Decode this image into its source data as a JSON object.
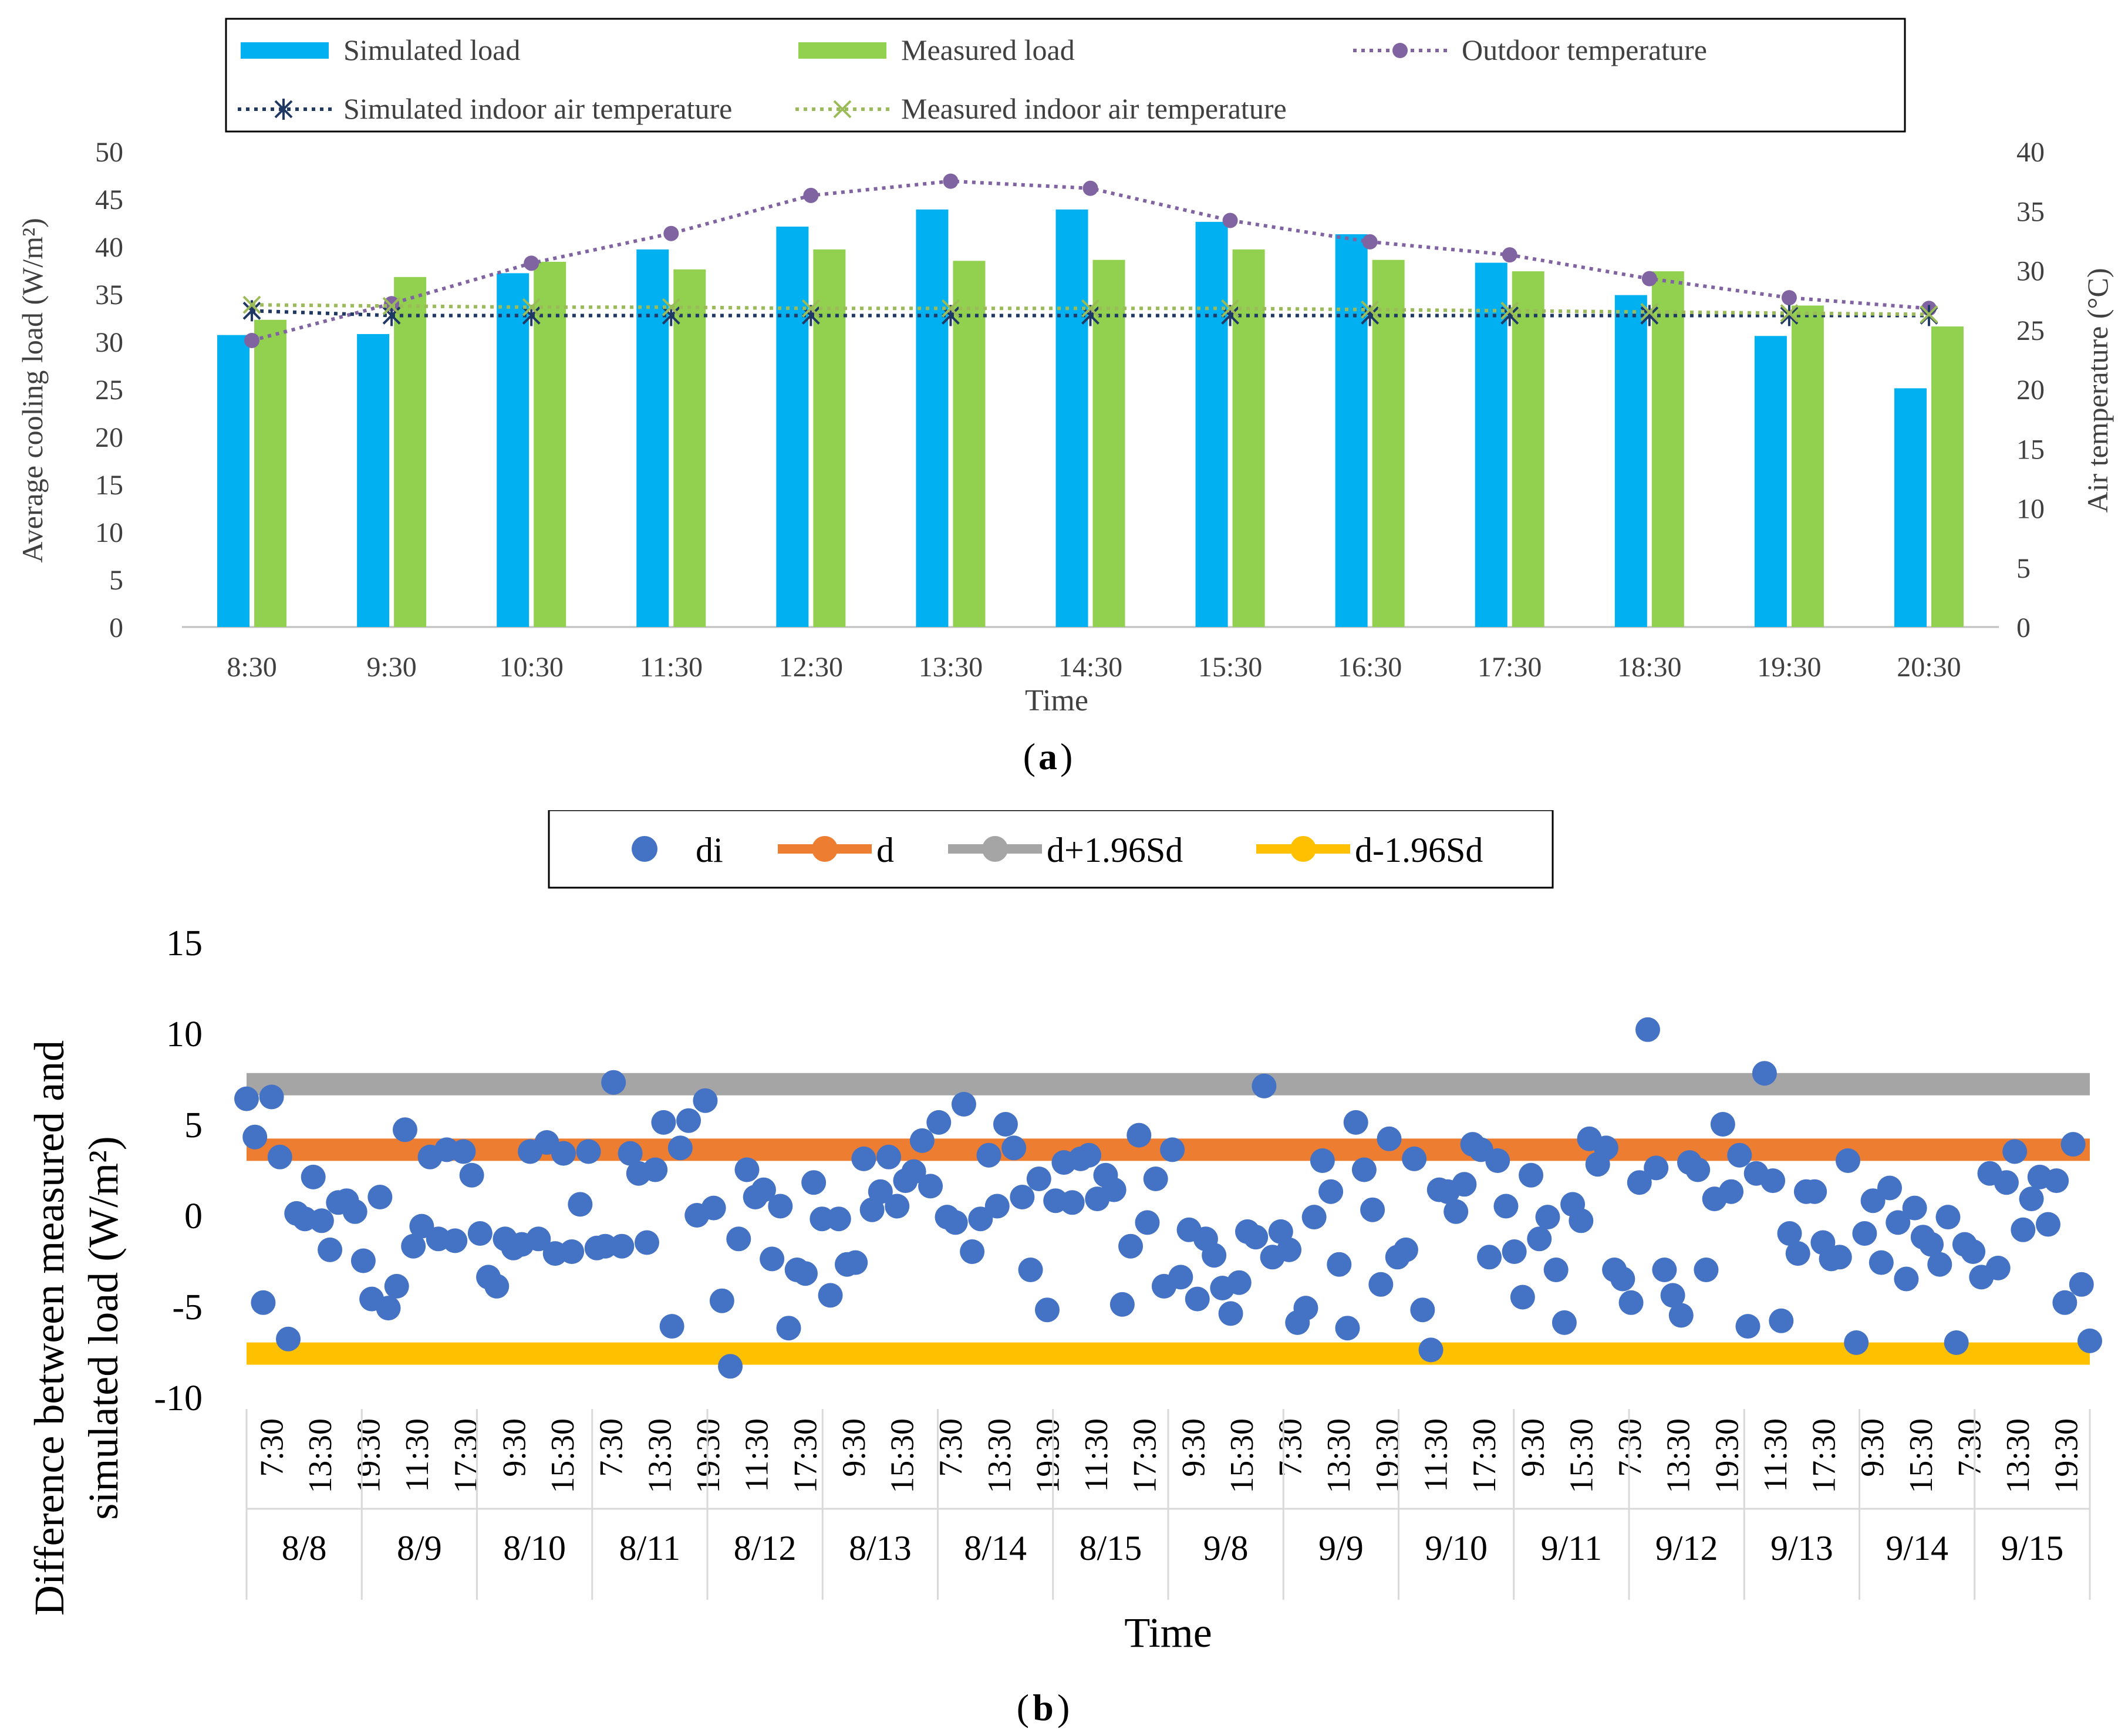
{
  "chart_data": [
    {
      "type": "bar",
      "panel_label": "a",
      "xlabel": "Time",
      "ylabel": "Average cooling load (W/m²)",
      "ylabel_right": "Air temperature (°C)",
      "ylim": [
        0,
        50
      ],
      "ylim_right": [
        0,
        40
      ],
      "yticks": [
        "0",
        "5",
        "10",
        "15",
        "20",
        "25",
        "30",
        "35",
        "40",
        "45",
        "50"
      ],
      "yticks_right": [
        "0",
        "5",
        "10",
        "15",
        "20",
        "25",
        "30",
        "35",
        "40"
      ],
      "categories": [
        "8:30",
        "9:30",
        "10:30",
        "11:30",
        "12:30",
        "13:30",
        "14:30",
        "15:30",
        "16:30",
        "17:30",
        "18:30",
        "19:30",
        "20:30"
      ],
      "legend": [
        "Simulated load",
        "Measured load",
        "Outdoor temperature",
        "Simulated indoor air temperature",
        "Measured indoor air temperature"
      ],
      "series": [
        {
          "name": "Simulated load",
          "kind": "bar",
          "axis": "left",
          "color": "#00B0F0",
          "values": [
            30.7,
            30.8,
            37.2,
            39.7,
            42.1,
            43.9,
            43.9,
            42.6,
            41.3,
            38.3,
            34.9,
            30.6,
            25.1
          ]
        },
        {
          "name": "Measured load",
          "kind": "bar",
          "axis": "left",
          "color": "#92D050",
          "values": [
            32.3,
            36.8,
            38.4,
            37.6,
            39.7,
            38.5,
            38.6,
            39.7,
            38.6,
            37.4,
            37.4,
            33.8,
            31.6
          ]
        },
        {
          "name": "Outdoor temperature",
          "kind": "line",
          "axis": "right",
          "color": "#8064A2",
          "values": [
            24.1,
            27.2,
            30.6,
            33.1,
            36.3,
            37.5,
            36.9,
            34.2,
            32.4,
            31.3,
            29.3,
            27.7,
            26.8
          ]
        },
        {
          "name": "Simulated indoor air temperature",
          "kind": "line",
          "axis": "right",
          "color": "#1F3864",
          "values": [
            26.6,
            26.2,
            26.2,
            26.2,
            26.2,
            26.2,
            26.2,
            26.2,
            26.2,
            26.2,
            26.2,
            26.2,
            26.2
          ]
        },
        {
          "name": "Measured indoor air temperature",
          "kind": "line",
          "axis": "right",
          "color": "#9BBB59",
          "values": [
            27.1,
            27.0,
            26.9,
            26.9,
            26.8,
            26.8,
            26.8,
            26.8,
            26.7,
            26.6,
            26.5,
            26.4,
            26.3
          ]
        }
      ]
    },
    {
      "type": "scatter",
      "panel_label": "b",
      "xlabel": "Time",
      "ylabel_line1": "Difference between measured and",
      "ylabel_line2": "simulated load (W/m²)",
      "ylim": [
        -10,
        15
      ],
      "yticks": [
        "-10",
        "-5",
        "0",
        "5",
        "10",
        "15"
      ],
      "groups": [
        "8/8",
        "8/9",
        "8/10",
        "8/11",
        "8/12",
        "8/13",
        "8/14",
        "8/15",
        "9/8",
        "9/9",
        "9/10",
        "9/11",
        "9/12",
        "9/13",
        "9/14",
        "9/15"
      ],
      "tick_labels": [
        "7:30",
        "13:30",
        "19:30",
        "11:30",
        "17:30",
        "9:30",
        "15:30",
        "7:30",
        "13:30",
        "19:30",
        "11:30",
        "17:30",
        "9:30",
        "15:30",
        "7:30",
        "13:30",
        "19:30",
        "11:30",
        "17:30",
        "9:30",
        "15:30",
        "7:30",
        "13:30",
        "19:30",
        "11:30",
        "17:30",
        "9:30",
        "15:30",
        "7:30",
        "13:30",
        "19:30",
        "11:30",
        "17:30",
        "9:30",
        "15:30",
        "7:30",
        "13:30",
        "19:30"
      ],
      "legend": [
        "di",
        "d",
        "d+1.96Sd",
        "d-1.96Sd"
      ],
      "reference_lines": [
        {
          "name": "d",
          "value": 3.6,
          "color": "#ED7D31"
        },
        {
          "name": "d+1.96Sd",
          "value": 7.2,
          "color": "#A5A5A5"
        },
        {
          "name": "d-1.96Sd",
          "value": -7.6,
          "color": "#FFC000"
        }
      ],
      "series": [
        {
          "name": "di",
          "color": "#4472C4",
          "values": [
            6.4,
            4.3,
            -4.8,
            6.5,
            3.2,
            -6.8,
            0.1,
            -0.2,
            2.1,
            -0.3,
            -1.9,
            0.7,
            0.8,
            0.2,
            -2.5,
            -4.6,
            1.0,
            -5.1,
            -3.9,
            4.7,
            -1.7,
            -0.6,
            3.2,
            -1.3,
            3.6,
            -1.4,
            3.5,
            2.2,
            -1.0,
            -3.4,
            -3.9,
            -1.3,
            -1.8,
            -1.6,
            3.5,
            -1.3,
            4.0,
            -2.1,
            3.4,
            -2.0,
            0.6,
            3.5,
            -1.8,
            -1.7,
            7.3,
            -1.7,
            3.4,
            2.3,
            -1.5,
            2.5,
            5.1,
            -6.1,
            3.7,
            5.2,
            0.0,
            6.3,
            0.4,
            -4.7,
            -8.3,
            -1.3,
            2.5,
            1.0,
            1.4,
            -2.4,
            0.5,
            -6.2,
            -3.0,
            -3.2,
            1.8,
            -0.2,
            -4.4,
            -0.2,
            -2.7,
            -2.6,
            3.1,
            0.3,
            1.3,
            3.2,
            0.5,
            1.9,
            2.4,
            4.1,
            1.6,
            5.1,
            -0.1,
            -0.4,
            6.1,
            -2.0,
            -0.2,
            3.3,
            0.5,
            5.0,
            3.7,
            1.0,
            -3.0,
            2.0,
            -5.2,
            0.8,
            2.9,
            0.7,
            3.1,
            3.3,
            0.9,
            2.2,
            1.4,
            -4.9,
            -1.7,
            4.4,
            -0.4,
            2.0,
            -3.9,
            3.6,
            -3.4,
            -0.8,
            -4.6,
            -1.3,
            -2.2,
            -4.0,
            -5.4,
            -3.7,
            -0.9,
            -1.2,
            7.1,
            -2.3,
            -0.9,
            -1.9,
            -5.9,
            -5.1,
            -0.1,
            3.0,
            1.3,
            -2.7,
            -6.2,
            5.1,
            2.5,
            0.3,
            -3.8,
            4.2,
            -2.3,
            -1.9,
            3.1,
            -5.2,
            -7.4,
            1.4,
            1.3,
            0.2,
            1.7,
            3.9,
            3.6,
            -2.3,
            3.0,
            0.5,
            -2.0,
            -4.5,
            2.2,
            -1.3,
            -0.1,
            -3.0,
            -5.9,
            0.6,
            -0.3,
            4.2,
            2.8,
            3.7,
            -3.0,
            -3.5,
            -4.8,
            1.8,
            10.2,
            2.6,
            -3.0,
            -4.4,
            -5.5,
            2.9,
            2.5,
            -3.0,
            0.9,
            5.0,
            1.3,
            3.3,
            -6.1,
            2.3,
            7.8,
            1.9,
            -5.8,
            -1.0,
            -2.1,
            1.3,
            1.3,
            -1.5,
            -2.4,
            -2.3,
            3.0,
            -7.0,
            -1.0,
            0.8,
            -2.6,
            1.5,
            -0.4,
            -3.5,
            0.4,
            -1.2,
            -1.6,
            -2.7,
            -0.1,
            -7.0,
            -1.6,
            -2.0,
            -3.4,
            2.3,
            -2.9,
            1.8,
            3.5,
            -0.8,
            0.9,
            2.1,
            -0.5,
            1.9,
            -4.8,
            3.9,
            -3.8,
            -6.9
          ]
        }
      ]
    }
  ]
}
